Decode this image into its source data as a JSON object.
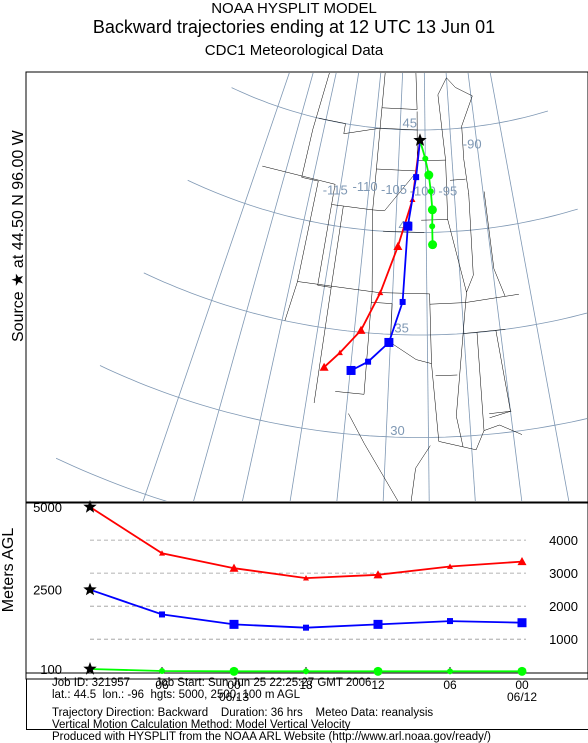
{
  "header": {
    "line1": "NOAA HYSPLIT MODEL",
    "line2": "Backward trajectories ending at 12 UTC 13 Jun 01",
    "line3": "CDC1 Meteorological Data"
  },
  "source_label": "Source ★ at 44.50 N 96.00 W",
  "map": {
    "lon_labels": [
      "-115",
      "-110",
      "-105",
      "-100",
      "-95",
      "-90"
    ],
    "lat_labels": [
      "45",
      "40",
      "35",
      "30"
    ]
  },
  "chart_data": {
    "type": "line",
    "title": "Backward trajectories ending at 12 UTC 13 Jun 01",
    "ylabel": "Meters AGL",
    "x_ticks": [
      "06",
      "00",
      "18",
      "12",
      "06",
      "00"
    ],
    "x_dates": [
      "06/13",
      "06/12"
    ],
    "y_left_ticks": [
      100,
      2500,
      5000
    ],
    "y_right_ticks": [
      1000,
      2000,
      3000,
      4000
    ],
    "ylim": [
      0,
      5000
    ],
    "hours_back": [
      0,
      6,
      12,
      18,
      24,
      30,
      36
    ],
    "series": [
      {
        "color": "#ff0000",
        "marker": "triangle",
        "height_m": [
          5000,
          3600,
          3150,
          2850,
          2950,
          3200,
          3350
        ],
        "lat": [
          44.5,
          41.6,
          39.3,
          37.0,
          35.1,
          33.9,
          33.1
        ],
        "lon": [
          -96.0,
          -97.3,
          -99.5,
          -101.8,
          -104.1,
          -106.6,
          -108.4
        ]
      },
      {
        "color": "#0000ff",
        "marker": "square",
        "height_m": [
          2500,
          1750,
          1450,
          1350,
          1450,
          1550,
          1500
        ],
        "lat": [
          44.5,
          42.7,
          40.3,
          36.6,
          34.6,
          33.6,
          33.1
        ],
        "lon": [
          -96.0,
          -96.7,
          -98.0,
          -98.5,
          -100.2,
          -102.8,
          -104.9
        ]
      },
      {
        "color": "#00ff00",
        "marker": "circle",
        "height_m": [
          100,
          40,
          30,
          30,
          30,
          30,
          30
        ],
        "lat": [
          44.5,
          43.6,
          42.8,
          42.0,
          41.1,
          40.3,
          39.4
        ],
        "lon": [
          -96.0,
          -95.0,
          -94.4,
          -94.1,
          -93.9,
          -94.0,
          -94.0
        ]
      }
    ]
  },
  "footer": {
    "line1": "Job ID: 321957        Job Start: Sun Jun 25 22:25:27 GMT 2006",
    "line2": "lat.: 44.5  lon.: -96  hgts: 5000, 2500, 100 m AGL",
    "line3": "Trajectory Direction: Backward    Duration: 36 hrs    Meteo Data: reanalysis",
    "line4": "Vertical Motion Calculation Method: Model Vertical Velocity",
    "line5": "Produced with HYSPLIT from the NOAA ARL Website (http://www.arl.noaa.gov/ready/)"
  }
}
